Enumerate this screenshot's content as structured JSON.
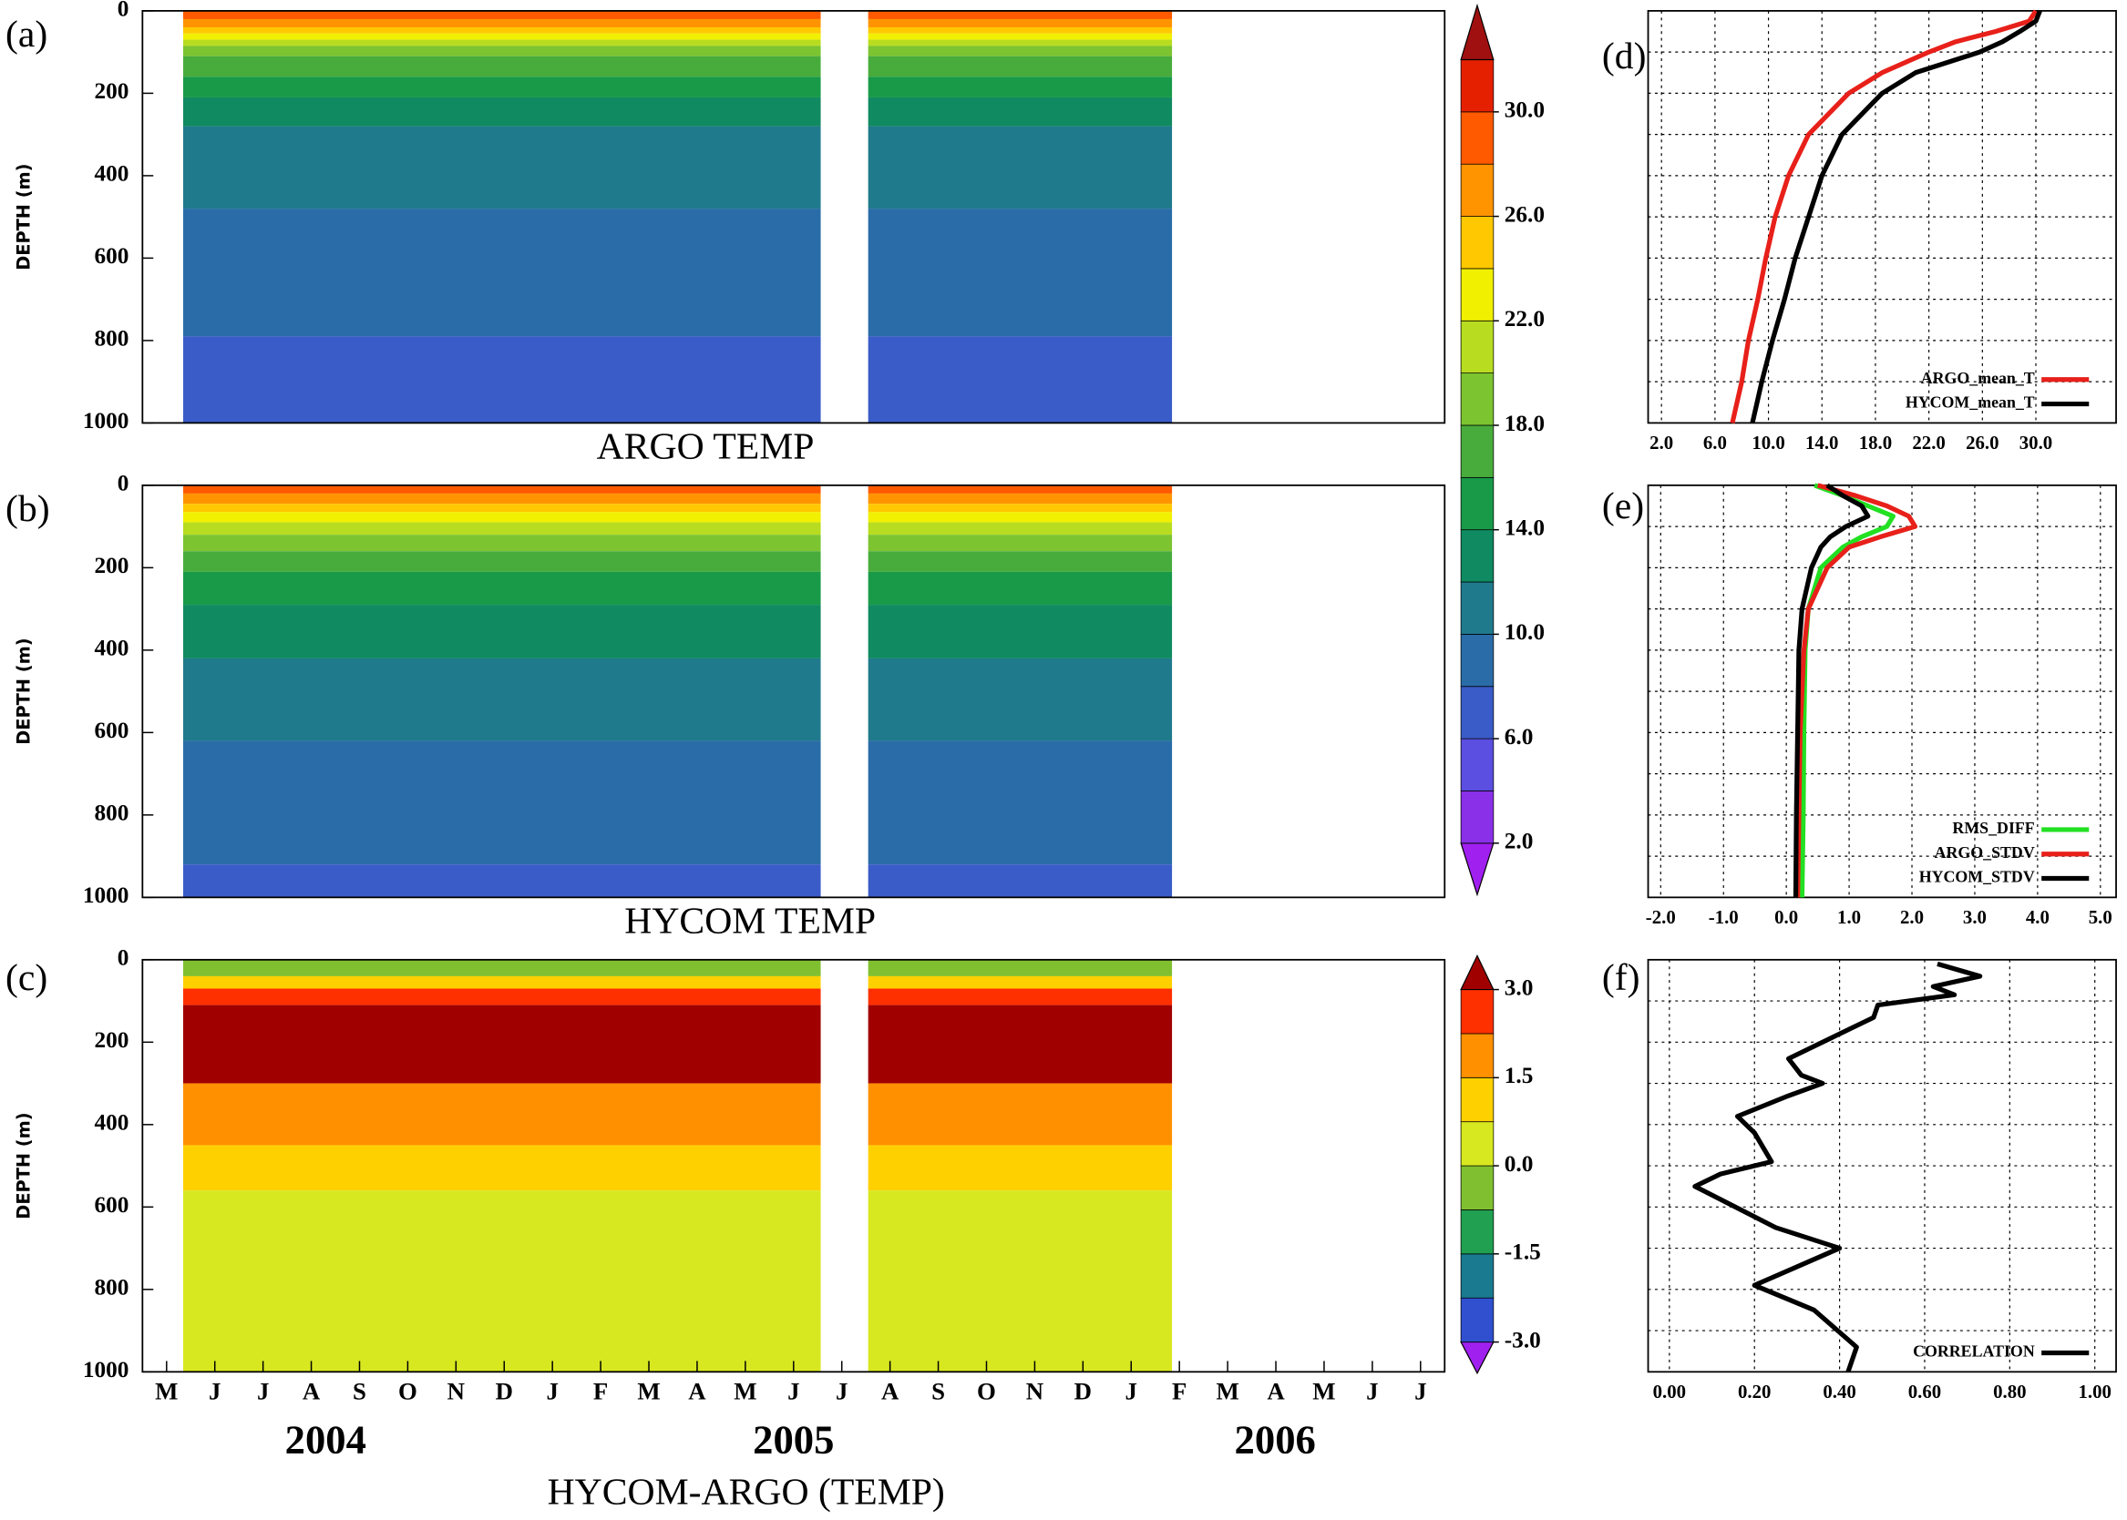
{
  "chart_data": [
    {
      "type": "contour",
      "letter": "(a)",
      "title": "ARGO TEMP",
      "ylabel": "DEPTH (m)",
      "ylim": [
        1000,
        0
      ],
      "yticks": [
        0,
        200,
        400,
        600,
        800,
        1000
      ],
      "layer_depths": [
        0,
        20,
        40,
        55,
        70,
        85,
        110,
        160,
        210,
        280,
        480,
        790,
        1000
      ],
      "layer_values": [
        29,
        27,
        25,
        23,
        21,
        19,
        17,
        15,
        13,
        11,
        9,
        7
      ],
      "colorbar": {
        "levels": [
          2,
          4,
          6,
          8,
          10,
          12,
          14,
          16,
          18,
          20,
          22,
          24,
          26,
          28,
          30,
          32
        ],
        "colors": [
          "#a020f0",
          "#8a30e8",
          "#5a4fe0",
          "#3a5cc8",
          "#2a6ca8",
          "#1f7a8c",
          "#108a60",
          "#189a48",
          "#48ac3c",
          "#7cc430",
          "#b8dc20",
          "#f0f000",
          "#ffc800",
          "#ff9400",
          "#ff5a00",
          "#e42000",
          "#a01010"
        ],
        "ticks": [
          {
            "value": 2,
            "label": "2.0"
          },
          {
            "value": 6,
            "label": "6.0"
          },
          {
            "value": 10,
            "label": "10.0"
          },
          {
            "value": 14,
            "label": "14.0"
          },
          {
            "value": 18,
            "label": "18.0"
          },
          {
            "value": 22,
            "label": "22.0"
          },
          {
            "value": 26,
            "label": "26.0"
          },
          {
            "value": 30,
            "label": "30.0"
          }
        ]
      }
    },
    {
      "type": "contour",
      "letter": "(b)",
      "title": "HYCOM TEMP",
      "ylabel": "DEPTH (m)",
      "ylim": [
        1000,
        0
      ],
      "yticks": [
        0,
        200,
        400,
        600,
        800,
        1000
      ],
      "layer_depths": [
        0,
        20,
        45,
        65,
        90,
        120,
        160,
        210,
        290,
        420,
        620,
        920,
        1000
      ],
      "layer_values": [
        29,
        27,
        25,
        23,
        21,
        19,
        17,
        15,
        13,
        11,
        9,
        7
      ]
    },
    {
      "type": "contour",
      "letter": "(c)",
      "title": "HYCOM-ARGO (TEMP)",
      "ylabel": "DEPTH (m)",
      "ylim": [
        1000,
        0
      ],
      "yticks": [
        0,
        200,
        400,
        600,
        800,
        1000
      ],
      "categories": [
        "M",
        "J",
        "J",
        "A",
        "S",
        "O",
        "N",
        "D",
        "J",
        "F",
        "M",
        "A",
        "M",
        "J",
        "J",
        "A",
        "S",
        "O",
        "N",
        "D",
        "J",
        "F",
        "M",
        "A",
        "M",
        "J",
        "J"
      ],
      "years": [
        "2004",
        "2005",
        "2006"
      ],
      "layer_depths": [
        0,
        40,
        70,
        110,
        300,
        450,
        560,
        1000
      ],
      "layer_values": [
        -0.5,
        1.0,
        2.5,
        3.2,
        2.0,
        1.2,
        0.4
      ],
      "colorbar": {
        "levels": [
          -3,
          -2.25,
          -1.5,
          -0.75,
          0,
          0.75,
          1.5,
          2.25,
          3
        ],
        "colors": [
          "#a020f0",
          "#3050d0",
          "#1a7a90",
          "#20a050",
          "#80c030",
          "#d8e820",
          "#ffd000",
          "#ff9000",
          "#ff3000",
          "#a00000"
        ],
        "ticks": [
          {
            "value": -3,
            "label": "-3.0"
          },
          {
            "value": -1.5,
            "label": "-1.5"
          },
          {
            "value": 0,
            "label": "0.0"
          },
          {
            "value": 1.5,
            "label": "1.5"
          },
          {
            "value": 3,
            "label": "3.0"
          }
        ]
      }
    },
    {
      "type": "line",
      "letter": "(d)",
      "xlim": [
        1,
        36
      ],
      "ylim": [
        1000,
        0
      ],
      "xticks": [
        {
          "value": 2,
          "label": "2.0"
        },
        {
          "value": 6,
          "label": "6.0"
        },
        {
          "value": 10,
          "label": "10.0"
        },
        {
          "value": 14,
          "label": "14.0"
        },
        {
          "value": 18,
          "label": "18.0"
        },
        {
          "value": 22,
          "label": "22.0"
        },
        {
          "value": 26,
          "label": "26.0"
        },
        {
          "value": 30,
          "label": "30.0"
        }
      ],
      "ygrid": [
        100,
        200,
        300,
        400,
        500,
        600,
        700,
        800,
        900
      ],
      "y": [
        0,
        25,
        50,
        75,
        100,
        150,
        200,
        300,
        400,
        500,
        600,
        700,
        800,
        900,
        1000
      ],
      "series": [
        {
          "name": "ARGO_mean_T",
          "color": "#e8201a",
          "values": [
            30,
            29.5,
            27,
            24,
            22,
            18.5,
            16,
            13,
            11.5,
            10.5,
            9.8,
            9.2,
            8.5,
            8,
            7.3
          ]
        },
        {
          "name": "HYCOM_mean_T",
          "color": "#000000",
          "values": [
            30.3,
            30,
            28.8,
            27.5,
            25.8,
            21,
            18.5,
            15.5,
            14,
            13,
            12,
            11.2,
            10.3,
            9.5,
            8.8
          ]
        }
      ]
    },
    {
      "type": "line",
      "letter": "(e)",
      "xlim": [
        -2.2,
        5.25
      ],
      "ylim": [
        1000,
        0
      ],
      "xticks": [
        {
          "value": -2,
          "label": "-2.0"
        },
        {
          "value": -1,
          "label": "-1.0"
        },
        {
          "value": 0,
          "label": "0.0"
        },
        {
          "value": 1,
          "label": "1.0"
        },
        {
          "value": 2,
          "label": "2.0"
        },
        {
          "value": 3,
          "label": "3.0"
        },
        {
          "value": 4,
          "label": "4.0"
        },
        {
          "value": 5,
          "label": "5.0"
        }
      ],
      "ygrid": [
        100,
        200,
        300,
        400,
        500,
        600,
        700,
        800,
        900
      ],
      "y": [
        0,
        25,
        50,
        75,
        100,
        125,
        150,
        200,
        300,
        400,
        600,
        800,
        1000
      ],
      "series": [
        {
          "name": "RMS_DIFF",
          "color": "#22e022",
          "values": [
            0.45,
            0.9,
            1.3,
            1.7,
            1.6,
            1.2,
            0.9,
            0.55,
            0.35,
            0.3,
            0.28,
            0.27,
            0.25
          ]
        },
        {
          "name": "ARGO_STDV",
          "color": "#e8201a",
          "values": [
            0.5,
            1.1,
            1.6,
            1.95,
            2.05,
            1.5,
            1.0,
            0.65,
            0.35,
            0.28,
            0.22,
            0.2,
            0.18
          ]
        },
        {
          "name": "HYCOM_STDV",
          "color": "#000000",
          "values": [
            0.65,
            0.9,
            1.2,
            1.3,
            0.95,
            0.7,
            0.55,
            0.4,
            0.25,
            0.2,
            0.18,
            0.16,
            0.15
          ]
        }
      ]
    },
    {
      "type": "line",
      "letter": "(f)",
      "xlim": [
        -0.05,
        1.05
      ],
      "ylim": [
        1000,
        0
      ],
      "xticks": [
        {
          "value": 0,
          "label": "0.00"
        },
        {
          "value": 0.2,
          "label": "0.20"
        },
        {
          "value": 0.4,
          "label": "0.40"
        },
        {
          "value": 0.6,
          "label": "0.60"
        },
        {
          "value": 0.8,
          "label": "0.80"
        },
        {
          "value": 1,
          "label": "1.00"
        }
      ],
      "ygrid": [
        100,
        200,
        300,
        400,
        500,
        600,
        700,
        800,
        900
      ],
      "y": [
        10,
        40,
        65,
        85,
        110,
        140,
        240,
        280,
        300,
        330,
        380,
        420,
        490,
        520,
        550,
        650,
        700,
        790,
        850,
        940,
        1000
      ],
      "series": [
        {
          "name": "CORRELATION",
          "color": "#000000",
          "values": [
            0.63,
            0.73,
            0.62,
            0.67,
            0.49,
            0.48,
            0.28,
            0.31,
            0.36,
            0.28,
            0.16,
            0.2,
            0.24,
            0.12,
            0.06,
            0.25,
            0.4,
            0.2,
            0.34,
            0.44,
            0.42
          ]
        }
      ]
    }
  ]
}
